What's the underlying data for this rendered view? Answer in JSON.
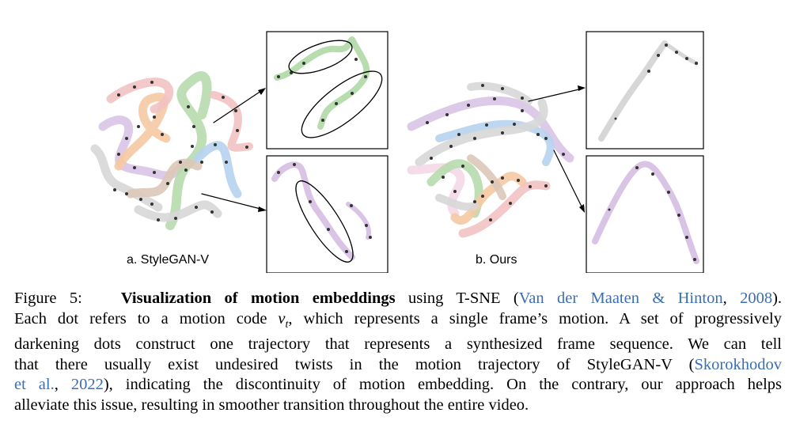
{
  "figure": {
    "panel_a_label": "a. StyleGAN-V",
    "panel_b_label": "b. Ours",
    "colors": {
      "green": "#b7dcae",
      "orange": "#f6c9a3",
      "purple": "#d9c4e6",
      "pink": "#f2c2c2",
      "blue": "#b7d3ee",
      "gray": "#d7d7d7",
      "brown": "#dcc8b8",
      "lightpink": "#f3d8e6"
    }
  },
  "caption": {
    "label": "Figure 5:",
    "title": "Visualization of motion embeddings",
    "l1_a": " using T-SNE (",
    "cite1": "Van der Maaten & Hinton",
    "l1_b": ", ",
    "cite1_year": "2008",
    "l1_c": ").",
    "l2_a": "Each dot refers to a motion code ",
    "l2_math": "v",
    "l2_sub": "t",
    "l2_b": ", which represents a single frame’s motion.  A set of progressively",
    "l3": "darkening dots construct one trajectory that represents a synthesized frame sequence.  We can tell",
    "l4_a": "that there usually exist undesired twists in the motion trajectory of StyleGAN-V (",
    "cite2": "Skorokhodov",
    "l5_cite": "et al.",
    "l5_a": ", ",
    "cite2_year": "2022",
    "l5_b": "), indicating the discontinuity of motion embedding. On the contrary, our approach helps",
    "l6": "alleviate this issue, resulting in smoother transition throughout the entire video."
  }
}
